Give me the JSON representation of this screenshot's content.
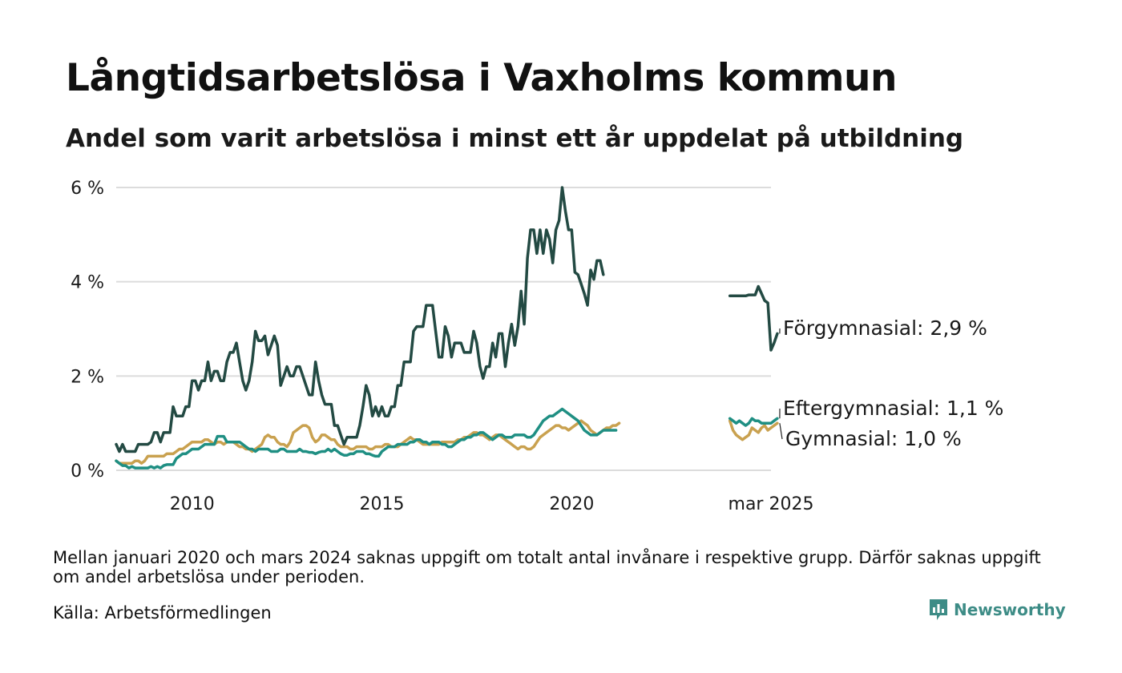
{
  "chart_data": {
    "type": "line",
    "title": "Långtidsarbetslösa i Vaxholms kommun",
    "subtitle": "Andel som varit arbetslösa i minst ett år uppdelat på utbildning",
    "x_ticks": [
      "2010",
      "2015",
      "2020",
      "mar 2025"
    ],
    "y_ticks": [
      "0 %",
      "2 %",
      "4 %",
      "6 %"
    ],
    "ylim": [
      0,
      6
    ],
    "grid": "horizontal",
    "legend": "direct labels at line ends",
    "note": "Mellan januari 2020 och mars 2024 saknas uppgift om totalt antal invånare i respektive grupp. Därför saknas uppgift om andel arbetslösa under perioden.",
    "source": "Källa: Arbetsförmedlingen",
    "series": [
      {
        "label": "Förgymnasial: 2,9 %",
        "color": "#234a43",
        "periods": [
          {
            "start": "2008-01",
            "values": [
              0.55,
              0.4,
              0.55,
              0.4,
              0.4,
              0.4,
              0.4,
              0.55,
              0.55,
              0.55,
              0.55,
              0.6,
              0.8,
              0.8,
              0.6,
              0.8,
              0.8,
              0.8,
              1.35,
              1.15,
              1.15,
              1.15,
              1.35,
              1.35,
              1.9,
              1.9,
              1.7,
              1.9,
              1.9,
              2.3,
              1.9,
              2.1,
              2.1,
              1.9,
              1.9,
              2.3,
              2.5,
              2.5,
              2.7,
              2.3,
              1.9,
              1.7,
              1.9,
              2.3,
              2.95,
              2.75,
              2.75,
              2.85,
              2.45,
              2.65,
              2.85,
              2.65,
              1.8,
              2.0,
              2.2,
              2.0,
              2.0,
              2.2,
              2.2,
              2.0,
              1.8,
              1.6,
              1.6,
              2.3,
              1.9,
              1.6,
              1.4,
              1.4,
              1.4,
              0.95,
              0.95,
              0.75,
              0.55,
              0.7,
              0.7,
              0.7,
              0.7,
              0.95,
              1.35,
              1.8,
              1.6,
              1.15,
              1.35,
              1.15,
              1.35,
              1.15,
              1.15,
              1.35,
              1.35,
              1.8,
              1.8,
              2.3,
              2.3,
              2.3,
              2.95,
              3.05,
              3.05,
              3.05,
              3.5,
              3.5,
              3.5,
              2.95,
              2.4,
              2.4,
              3.05,
              2.85,
              2.4,
              2.7,
              2.7,
              2.7,
              2.5,
              2.5,
              2.5,
              2.95,
              2.7,
              2.2,
              1.95,
              2.2,
              2.2,
              2.7,
              2.4,
              2.9,
              2.9,
              2.2,
              2.7,
              3.1,
              2.65,
              3.05,
              3.8,
              3.1,
              4.5,
              5.1,
              5.1,
              4.6,
              5.1,
              4.6,
              5.1,
              4.9,
              4.4,
              5.1,
              5.3,
              6.0,
              5.5,
              5.1,
              5.1,
              4.2,
              4.15,
              3.95,
              3.75,
              3.5,
              4.25,
              4.05,
              4.45,
              4.45,
              4.15
            ]
          },
          {
            "start": "2024-03",
            "values": [
              3.7,
              3.7,
              3.7,
              3.7,
              3.7,
              3.7,
              3.72,
              3.72,
              3.72,
              3.9,
              3.75,
              3.6,
              3.55,
              2.55,
              2.7,
              2.9
            ]
          }
        ]
      },
      {
        "label": "Eftergymnasial: 1,1 %",
        "color": "#1f8f83",
        "periods": [
          {
            "start": "2008-01",
            "values": [
              0.2,
              0.15,
              0.1,
              0.1,
              0.05,
              0.08,
              0.05,
              0.05,
              0.05,
              0.05,
              0.05,
              0.08,
              0.05,
              0.08,
              0.05,
              0.1,
              0.12,
              0.12,
              0.12,
              0.25,
              0.3,
              0.35,
              0.35,
              0.4,
              0.45,
              0.45,
              0.45,
              0.5,
              0.55,
              0.55,
              0.55,
              0.55,
              0.72,
              0.72,
              0.72,
              0.6,
              0.6,
              0.6,
              0.6,
              0.6,
              0.55,
              0.5,
              0.45,
              0.45,
              0.4,
              0.45,
              0.45,
              0.45,
              0.45,
              0.4,
              0.4,
              0.4,
              0.45,
              0.45,
              0.4,
              0.4,
              0.4,
              0.4,
              0.45,
              0.4,
              0.4,
              0.38,
              0.38,
              0.35,
              0.38,
              0.4,
              0.4,
              0.45,
              0.4,
              0.45,
              0.4,
              0.35,
              0.32,
              0.32,
              0.35,
              0.35,
              0.4,
              0.4,
              0.4,
              0.35,
              0.35,
              0.32,
              0.3,
              0.3,
              0.4,
              0.45,
              0.5,
              0.5,
              0.5,
              0.55,
              0.55,
              0.55,
              0.55,
              0.6,
              0.6,
              0.65,
              0.65,
              0.6,
              0.6,
              0.55,
              0.6,
              0.6,
              0.6,
              0.55,
              0.55,
              0.5,
              0.5,
              0.55,
              0.6,
              0.65,
              0.65,
              0.7,
              0.7,
              0.75,
              0.75,
              0.8,
              0.8,
              0.75,
              0.7,
              0.65,
              0.7,
              0.75,
              0.75,
              0.7,
              0.7,
              0.7,
              0.75,
              0.75,
              0.75,
              0.75,
              0.7,
              0.7,
              0.75,
              0.85,
              0.95,
              1.05,
              1.1,
              1.15,
              1.15,
              1.2,
              1.25,
              1.3,
              1.25,
              1.2,
              1.15,
              1.1,
              1.05,
              0.95,
              0.85,
              0.8,
              0.75,
              0.75,
              0.75,
              0.8,
              0.85,
              0.85,
              0.85,
              0.85,
              0.85
            ]
          },
          {
            "start": "2024-03",
            "values": [
              1.1,
              1.05,
              1.0,
              1.05,
              1.0,
              0.95,
              1.0,
              1.1,
              1.05,
              1.05,
              1.0,
              1.0,
              1.0,
              1.0,
              1.05,
              1.1
            ]
          }
        ]
      },
      {
        "label": "Gymnasial: 1,0 %",
        "color": "#c9a14f",
        "periods": [
          {
            "start": "2008-01",
            "values": [
              0.2,
              0.15,
              0.15,
              0.15,
              0.15,
              0.15,
              0.2,
              0.2,
              0.15,
              0.2,
              0.3,
              0.3,
              0.3,
              0.3,
              0.3,
              0.3,
              0.35,
              0.35,
              0.35,
              0.4,
              0.45,
              0.45,
              0.5,
              0.55,
              0.6,
              0.6,
              0.6,
              0.6,
              0.65,
              0.65,
              0.6,
              0.55,
              0.6,
              0.6,
              0.55,
              0.6,
              0.6,
              0.6,
              0.55,
              0.5,
              0.5,
              0.45,
              0.45,
              0.4,
              0.45,
              0.5,
              0.55,
              0.7,
              0.75,
              0.7,
              0.7,
              0.6,
              0.55,
              0.55,
              0.5,
              0.6,
              0.8,
              0.85,
              0.9,
              0.95,
              0.95,
              0.9,
              0.7,
              0.6,
              0.65,
              0.75,
              0.75,
              0.7,
              0.65,
              0.65,
              0.55,
              0.5,
              0.5,
              0.5,
              0.45,
              0.45,
              0.5,
              0.5,
              0.5,
              0.5,
              0.45,
              0.45,
              0.5,
              0.5,
              0.5,
              0.55,
              0.55,
              0.5,
              0.5,
              0.5,
              0.55,
              0.6,
              0.65,
              0.7,
              0.65,
              0.65,
              0.6,
              0.55,
              0.55,
              0.55,
              0.55,
              0.55,
              0.55,
              0.6,
              0.6,
              0.6,
              0.6,
              0.6,
              0.65,
              0.65,
              0.7,
              0.7,
              0.75,
              0.8,
              0.8,
              0.75,
              0.75,
              0.7,
              0.65,
              0.7,
              0.75,
              0.75,
              0.7,
              0.65,
              0.6,
              0.55,
              0.5,
              0.45,
              0.5,
              0.5,
              0.45,
              0.45,
              0.5,
              0.6,
              0.7,
              0.75,
              0.8,
              0.85,
              0.9,
              0.95,
              0.95,
              0.9,
              0.9,
              0.85,
              0.9,
              0.95,
              1.0,
              1.05,
              1.0,
              0.95,
              0.85,
              0.8,
              0.75,
              0.8,
              0.85,
              0.9,
              0.9,
              0.95,
              0.95,
              1.0
            ]
          },
          {
            "start": "2024-03",
            "values": [
              1.05,
              0.85,
              0.75,
              0.7,
              0.65,
              0.7,
              0.75,
              0.9,
              0.85,
              0.8,
              0.9,
              0.95,
              0.85,
              0.9,
              0.95,
              1.0
            ]
          }
        ]
      }
    ]
  },
  "logo": {
    "text": "Newsworthy",
    "icon": "bar-chart-icon"
  }
}
